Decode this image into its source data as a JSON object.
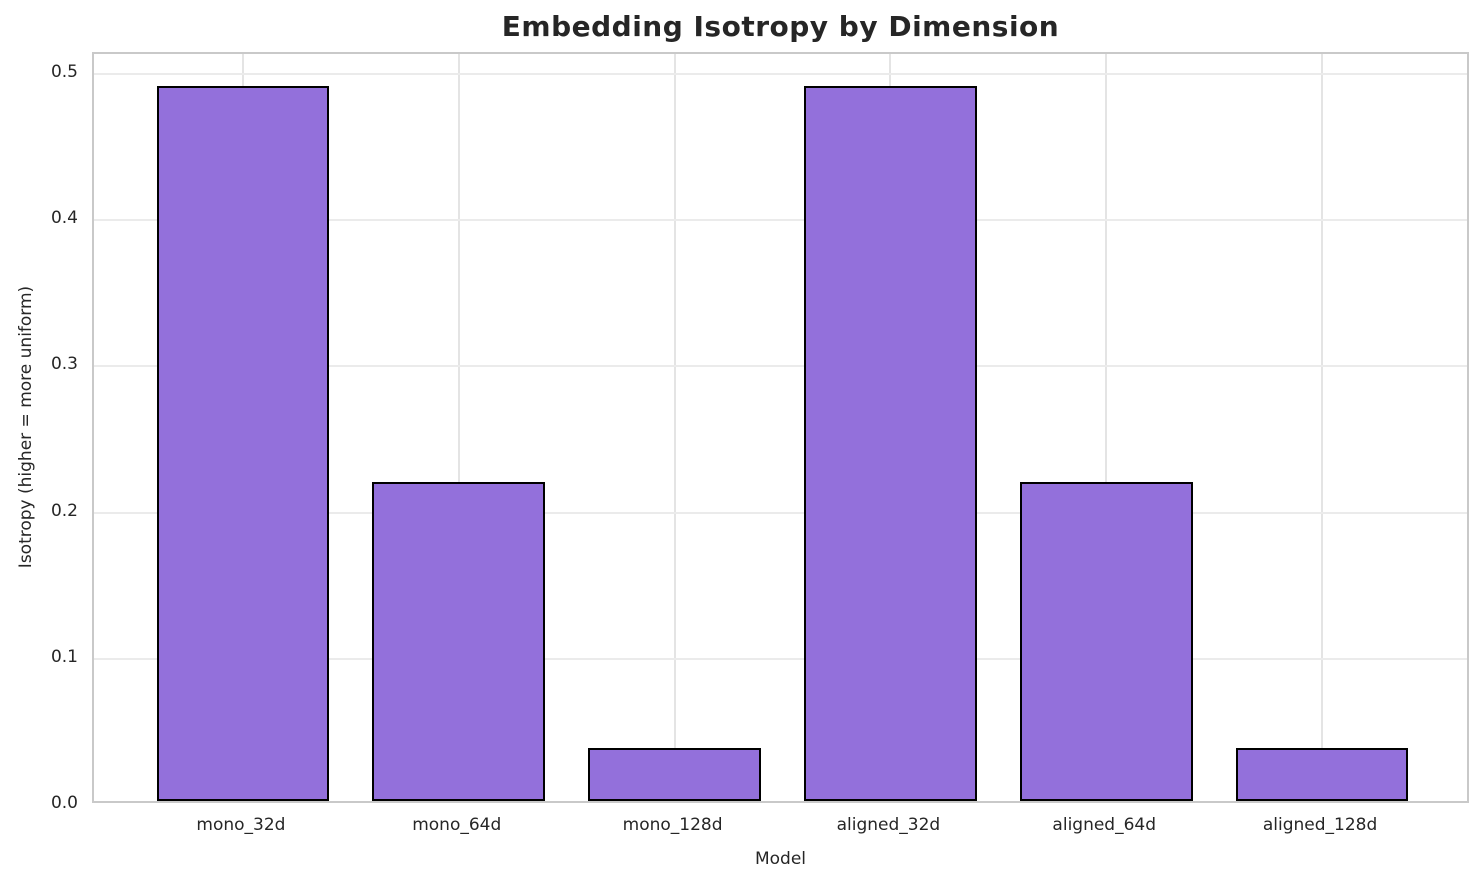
{
  "chart_data": {
    "type": "bar",
    "title": "Embedding Isotropy by Dimension",
    "xlabel": "Model",
    "ylabel": "Isotropy (higher = more uniform)",
    "categories": [
      "mono_32d",
      "mono_64d",
      "mono_128d",
      "aligned_32d",
      "aligned_64d",
      "aligned_128d"
    ],
    "values": [
      0.489,
      0.218,
      0.036,
      0.489,
      0.218,
      0.036
    ],
    "yticks": [
      0.0,
      0.1,
      0.2,
      0.3,
      0.4,
      0.5
    ],
    "ytick_labels": [
      "0.0",
      "0.1",
      "0.2",
      "0.3",
      "0.4",
      "0.5"
    ],
    "ylim": [
      0,
      0.5137
    ],
    "xlim": [
      -0.69,
      5.69
    ],
    "bar_width_units": 0.8,
    "grid": "both",
    "legend": "none",
    "colors": {
      "bar_fill": "#9370DB",
      "bar_edge": "#000000",
      "grid_h": "#ebebeb",
      "grid_v": "#e4e4e4",
      "spine": "#c9c9c9",
      "title_text": "#262626",
      "tick_text": "#262626",
      "background": "#ffffff"
    }
  }
}
